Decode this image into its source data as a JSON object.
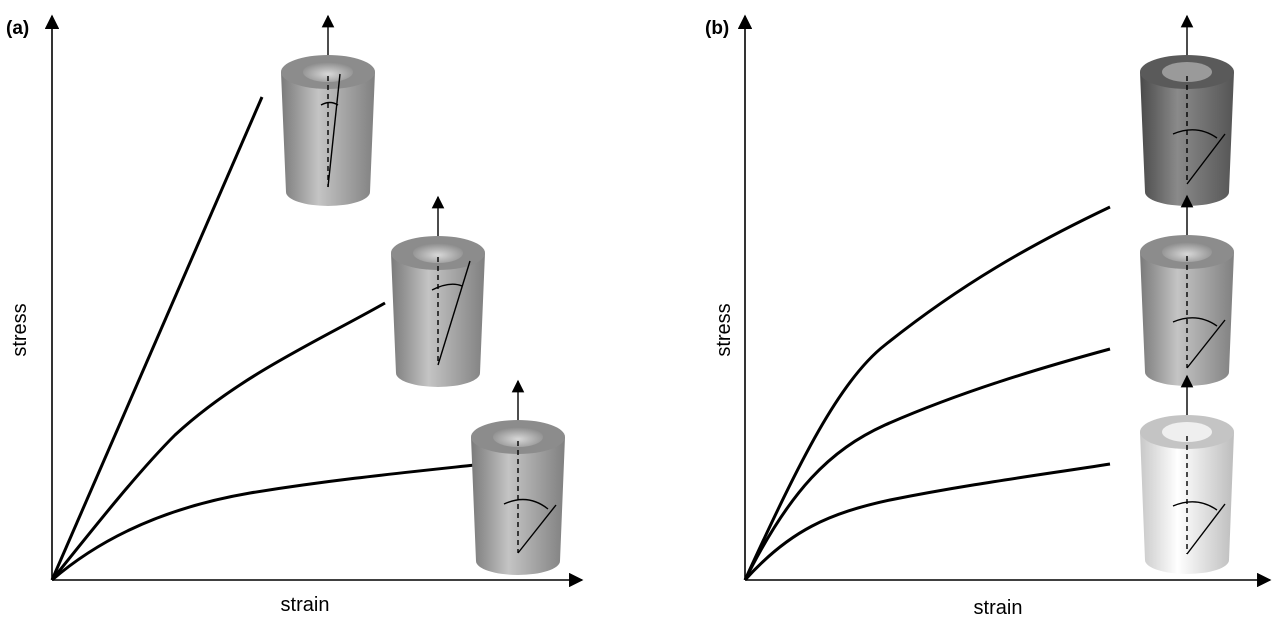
{
  "panels": [
    {
      "label": "(a)",
      "y_axis_label": "stress",
      "x_axis_label": "strain"
    },
    {
      "label": "(b)",
      "y_axis_label": "stress",
      "x_axis_label": "strain"
    }
  ]
}
